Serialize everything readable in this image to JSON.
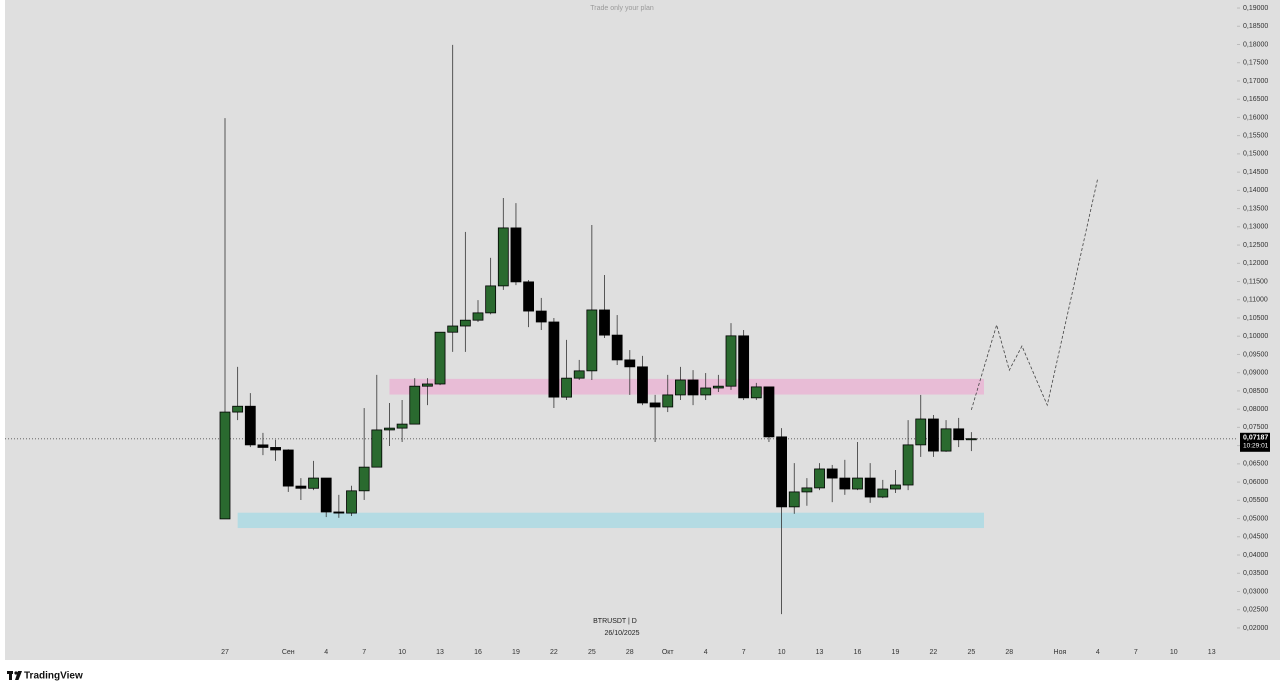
{
  "title": "Trade only your plan",
  "brand": "TradingView",
  "chart_data": {
    "type": "candlestick",
    "symbol": "BTRUSDT | D",
    "date": "26/10/2025",
    "categories": [
      "27",
      null,
      null,
      null,
      null,
      "Сен",
      null,
      null,
      "4",
      null,
      null,
      "7",
      null,
      null,
      "10",
      null,
      null,
      "13",
      null,
      null,
      "16",
      null,
      null,
      "19",
      null,
      null,
      "22",
      null,
      null,
      "25",
      null,
      null,
      "28",
      null,
      null,
      "Окт",
      null,
      null,
      "4",
      null,
      null,
      "7",
      null,
      null,
      "10",
      null,
      null,
      "13",
      null,
      null,
      "16",
      null,
      null,
      "19",
      null,
      null,
      "22",
      null,
      null,
      "25",
      null,
      null,
      "28",
      null,
      null,
      null,
      "Ноя",
      null,
      null,
      "4",
      null,
      null,
      "7",
      null,
      null,
      "10",
      null,
      null,
      "13"
    ],
    "open": [
      0.0499,
      0.0792,
      0.0808,
      0.0702,
      0.0695,
      0.0688,
      0.0589,
      0.0583,
      0.0611,
      0.0518,
      0.0515,
      0.0576,
      0.0641,
      0.0743,
      0.0748,
      0.0759,
      0.0863,
      0.0869,
      0.1011,
      0.1028,
      0.1044,
      0.1064,
      0.1138,
      0.1297,
      0.1149,
      0.1069,
      0.1039,
      0.0833,
      0.0885,
      0.0905,
      0.1072,
      0.1003,
      0.0935,
      0.0916,
      0.0817,
      0.0806,
      0.0839,
      0.088,
      0.0839,
      0.0858,
      0.0863,
      0.1001,
      0.0831,
      0.0861,
      0.0724,
      0.0532,
      0.0573,
      0.0584,
      0.0636,
      0.0611,
      0.0581,
      0.0611,
      0.0559,
      0.0581,
      0.0592,
      0.0702,
      0.0773,
      0.0685,
      0.0746,
      0.0716,
      null,
      null,
      null,
      null,
      null,
      null,
      null,
      null,
      null,
      null,
      null,
      null,
      null,
      null,
      null,
      null,
      null,
      null,
      null
    ],
    "high": [
      0.1598,
      0.0916,
      0.0844,
      0.0735,
      0.0716,
      0.069,
      0.0611,
      0.0658,
      0.0611,
      0.0565,
      0.059,
      0.0803,
      0.0894,
      0.0817,
      0.0825,
      0.0885,
      0.0885,
      0.1011,
      0.1799,
      0.1286,
      0.1099,
      0.1215,
      0.1379,
      0.1365,
      0.1154,
      0.1105,
      0.105,
      0.099,
      0.0935,
      0.1305,
      0.1168,
      0.1058,
      0.0962,
      0.0946,
      0.0839,
      0.0894,
      0.0916,
      0.0907,
      0.0899,
      0.0894,
      0.1036,
      0.1017,
      0.0872,
      0.0861,
      0.0748,
      0.0652,
      0.0611,
      0.0652,
      0.0647,
      0.0661,
      0.071,
      0.0652,
      0.0606,
      0.0633,
      0.077,
      0.0839,
      0.0784,
      0.077,
      0.0776,
      0.0737,
      null,
      null,
      null,
      null,
      null,
      null,
      null,
      null,
      null,
      null,
      null,
      null,
      null,
      null,
      null,
      null,
      null,
      null,
      null
    ],
    "low": [
      0.0499,
      0.077,
      0.0696,
      0.0674,
      0.0658,
      0.0573,
      0.0551,
      0.0578,
      0.0504,
      0.0502,
      0.0507,
      0.0551,
      0.0641,
      0.0699,
      0.071,
      0.0759,
      0.0811,
      0.0866,
      0.0957,
      0.0957,
      0.1039,
      0.106,
      0.1127,
      0.114,
      0.1025,
      0.1017,
      0.0803,
      0.0825,
      0.088,
      0.088,
      0.0995,
      0.0921,
      0.0839,
      0.0811,
      0.071,
      0.0792,
      0.0825,
      0.0811,
      0.0825,
      0.0847,
      0.0853,
      0.0825,
      0.0825,
      0.071,
      0.0238,
      0.0513,
      0.0535,
      0.0578,
      0.0545,
      0.0565,
      0.0578,
      0.0543,
      0.0556,
      0.057,
      0.0578,
      0.0669,
      0.0669,
      0.0683,
      0.0696,
      0.0685,
      null,
      null,
      null,
      null,
      null,
      null,
      null,
      null,
      null,
      null,
      null,
      null,
      null,
      null,
      null,
      null,
      null,
      null,
      null
    ],
    "close": [
      0.0792,
      0.0808,
      0.0702,
      0.0695,
      0.0688,
      0.0589,
      0.0583,
      0.0611,
      0.0518,
      0.0515,
      0.0576,
      0.0641,
      0.0743,
      0.0748,
      0.0759,
      0.0863,
      0.0869,
      0.1011,
      0.1028,
      0.1044,
      0.1064,
      0.1138,
      0.1297,
      0.1149,
      0.1069,
      0.1039,
      0.0833,
      0.0885,
      0.0905,
      0.1072,
      0.1003,
      0.0935,
      0.0916,
      0.0817,
      0.0806,
      0.0839,
      0.088,
      0.0839,
      0.0858,
      0.0863,
      0.1001,
      0.0831,
      0.0861,
      0.0724,
      0.0532,
      0.0573,
      0.0584,
      0.0636,
      0.0611,
      0.0581,
      0.0611,
      0.0559,
      0.0581,
      0.0592,
      0.0702,
      0.0773,
      0.0685,
      0.0746,
      0.0716,
      0.0719,
      null,
      null,
      null,
      null,
      null,
      null,
      null,
      null,
      null,
      null,
      null,
      null,
      null,
      null,
      null,
      null,
      null,
      null,
      null
    ],
    "up_color": "#2a6a2f",
    "down_color": "#000000",
    "ylim": [
      0.0145,
      0.1922
    ],
    "yticks": [
      {
        "value": 0.02,
        "label": "0,02000"
      },
      {
        "value": 0.025,
        "label": "0,02500"
      },
      {
        "value": 0.03,
        "label": "0,03000"
      },
      {
        "value": 0.035,
        "label": "0,03500"
      },
      {
        "value": 0.04,
        "label": "0,04000"
      },
      {
        "value": 0.045,
        "label": "0,04500"
      },
      {
        "value": 0.05,
        "label": "0,05000"
      },
      {
        "value": 0.055,
        "label": "0,05500"
      },
      {
        "value": 0.06,
        "label": "0,06000"
      },
      {
        "value": 0.065,
        "label": "0,06500"
      },
      {
        "value": 0.07,
        "label": "0,07000"
      },
      {
        "value": 0.075,
        "label": "0,07500"
      },
      {
        "value": 0.08,
        "label": "0,08000"
      },
      {
        "value": 0.085,
        "label": "0,08500"
      },
      {
        "value": 0.09,
        "label": "0,09000"
      },
      {
        "value": 0.095,
        "label": "0,09500"
      },
      {
        "value": 0.1,
        "label": "0,10000"
      },
      {
        "value": 0.105,
        "label": "0,10500"
      },
      {
        "value": 0.11,
        "label": "0,11000"
      },
      {
        "value": 0.115,
        "label": "0,11500"
      },
      {
        "value": 0.12,
        "label": "0,12000"
      },
      {
        "value": 0.125,
        "label": "0,12500"
      },
      {
        "value": 0.13,
        "label": "0,13000"
      },
      {
        "value": 0.135,
        "label": "0,13500"
      },
      {
        "value": 0.14,
        "label": "0,14000"
      },
      {
        "value": 0.145,
        "label": "0,14500"
      },
      {
        "value": 0.15,
        "label": "0,15000"
      },
      {
        "value": 0.155,
        "label": "0,15500"
      },
      {
        "value": 0.16,
        "label": "0,16000"
      },
      {
        "value": 0.165,
        "label": "0,16500"
      },
      {
        "value": 0.17,
        "label": "0,17000"
      },
      {
        "value": 0.175,
        "label": "0,17500"
      },
      {
        "value": 0.18,
        "label": "0,18000"
      },
      {
        "value": 0.185,
        "label": "0,18500"
      },
      {
        "value": 0.19,
        "label": "0,19000"
      }
    ],
    "last_price": {
      "value": 0.07187,
      "label": "0,07187"
    },
    "countdown": "10:29:01",
    "zones": [
      {
        "color": "#e8bcd6",
        "top": 0.0883,
        "bottom": 0.084,
        "start": 13,
        "end": 60
      },
      {
        "color": "#b4dbe3",
        "top": 0.0516,
        "bottom": 0.0474,
        "start": 1,
        "end": 60
      }
    ],
    "projection": {
      "x": [
        59,
        61,
        62,
        63,
        65,
        69
      ],
      "values": [
        0.0798,
        0.1031,
        0.0907,
        0.0973,
        0.0811,
        0.1434
      ]
    }
  }
}
